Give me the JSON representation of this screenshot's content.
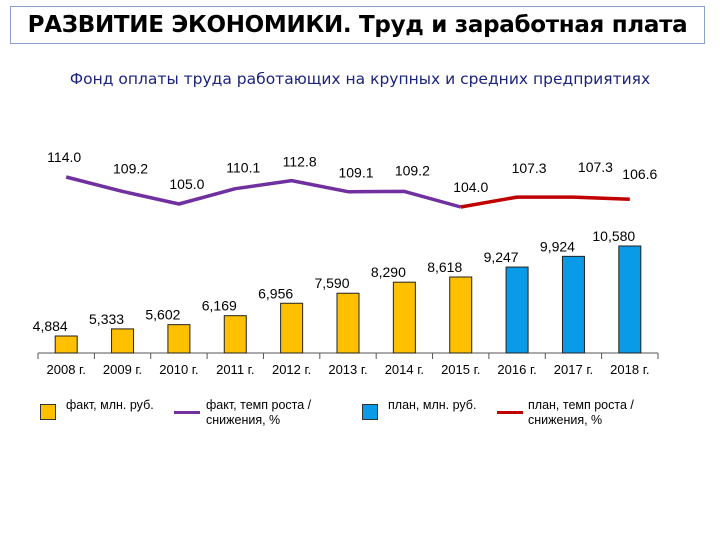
{
  "header": {
    "title": "РАЗВИТИЕ ЭКОНОМИКИ. Труд и заработная плата",
    "subtitle": "Фонд оплаты труда работающих на крупных и средних предприятиях"
  },
  "colors": {
    "fact_bar": "#ffc000",
    "plan_bar": "#0a9be8",
    "fact_line": "#7030a0",
    "plan_line": "#c00000",
    "title_border": "#8aa0c8",
    "subtitle": "#1a237e"
  },
  "chart_data": {
    "type": "bar",
    "categories": [
      "2008 г.",
      "2009 г.",
      "2010 г.",
      "2011 г.",
      "2012 г.",
      "2013 г.",
      "2014 г.",
      "2015 г.",
      "2016 г.",
      "2017 г.",
      "2018 г."
    ],
    "bars": [
      {
        "value": 4884,
        "label": "4,884",
        "kind": "fact"
      },
      {
        "value": 5333,
        "label": "5,333",
        "kind": "fact"
      },
      {
        "value": 5602,
        "label": "5,602",
        "kind": "fact"
      },
      {
        "value": 6169,
        "label": "6,169",
        "kind": "fact"
      },
      {
        "value": 6956,
        "label": "6,956",
        "kind": "fact"
      },
      {
        "value": 7590,
        "label": "7,590",
        "kind": "fact"
      },
      {
        "value": 8290,
        "label": "8,290",
        "kind": "fact"
      },
      {
        "value": 8618,
        "label": "8,618",
        "kind": "fact"
      },
      {
        "value": 9247,
        "label": "9,247",
        "kind": "plan"
      },
      {
        "value": 9924,
        "label": "9,924",
        "kind": "plan"
      },
      {
        "value": 10580,
        "label": "10,580",
        "kind": "plan"
      }
    ],
    "growth": [
      {
        "value": 114.0,
        "label": "114.0",
        "kind": "fact"
      },
      {
        "value": 109.2,
        "label": "109.2",
        "kind": "fact"
      },
      {
        "value": 105.0,
        "label": "105.0",
        "kind": "fact"
      },
      {
        "value": 110.1,
        "label": "110.1",
        "kind": "fact"
      },
      {
        "value": 112.8,
        "label": "112.8",
        "kind": "fact"
      },
      {
        "value": 109.1,
        "label": "109.1",
        "kind": "fact"
      },
      {
        "value": 109.2,
        "label": "109.2",
        "kind": "fact"
      },
      {
        "value": 104.0,
        "label": "104.0",
        "kind": "fact"
      },
      {
        "value": 107.3,
        "label": "107.3",
        "kind": "plan"
      },
      {
        "value": 107.3,
        "label": "107.3",
        "kind": "plan"
      },
      {
        "value": 106.6,
        "label": "106.6",
        "kind": "plan"
      }
    ],
    "legend": [
      {
        "label": "факт, млн. руб.",
        "kind": "fact_bar"
      },
      {
        "label": "факт, темп роста / снижения, %",
        "kind": "fact_line"
      },
      {
        "label": "план, млн. руб.",
        "kind": "plan_bar"
      },
      {
        "label": "план, темп роста / снижения, %",
        "kind": "plan_line"
      }
    ],
    "legend_position": "bottom",
    "grid": false
  }
}
